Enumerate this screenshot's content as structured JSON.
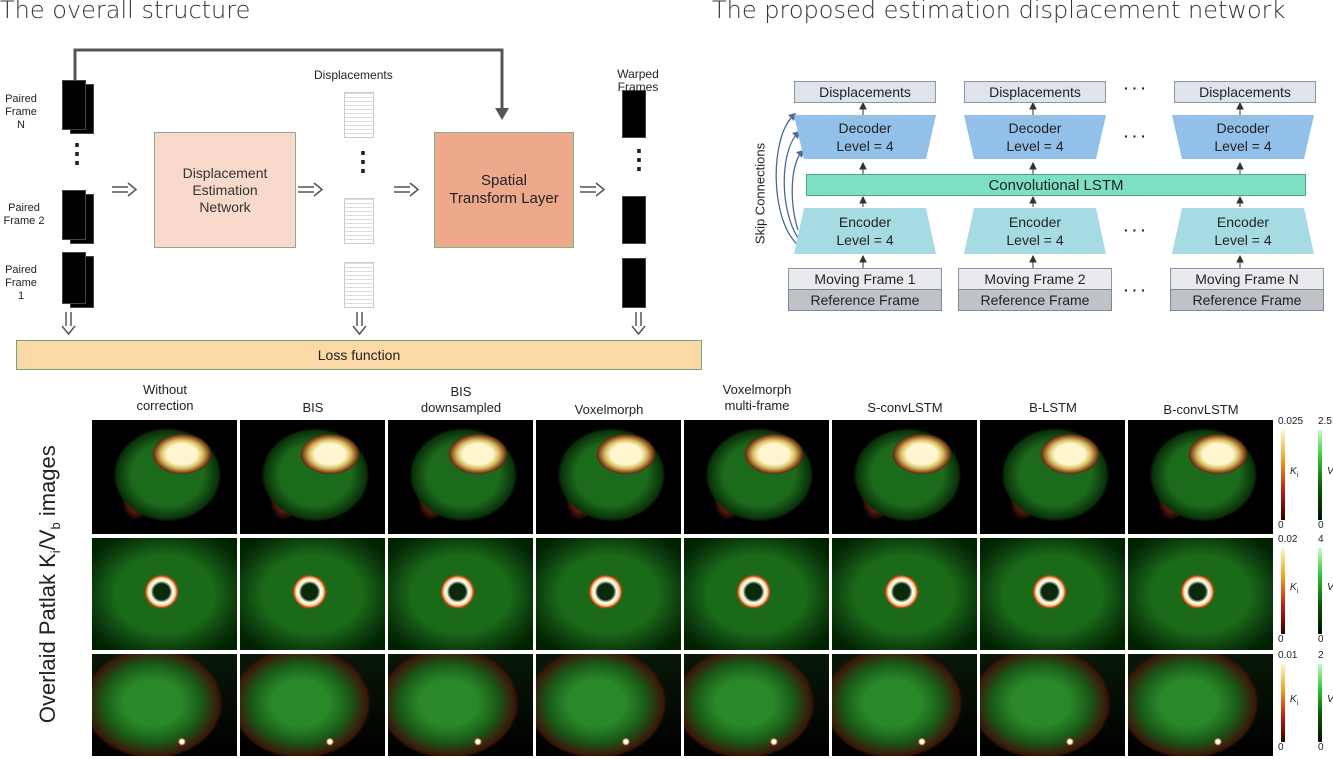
{
  "overall": {
    "title": "The overall structure",
    "paired_frames": [
      "Paired\nFrame N",
      "Paired\nFrame 2",
      "Paired\nFrame 1"
    ],
    "displacements_label": "Displacements",
    "warped_label": "Warped\nFrames",
    "dn_box": "Displacement\nEstimation\nNetwork",
    "stl_box": "Spatial\nTransform Layer",
    "loss": "Loss function",
    "ellipsis": "⋮"
  },
  "network": {
    "title": "The proposed estimation displacement network",
    "skip": "Skip Connections",
    "lstm": "Convolutional LSTM",
    "columns": [
      {
        "displacement": "Displacements",
        "decoder": "Decoder\nLevel = 4",
        "encoder": "Encoder\nLevel = 4",
        "moving": "Moving Frame 1",
        "reference": "Reference Frame"
      },
      {
        "displacement": "Displacements",
        "decoder": "Decoder\nLevel = 4",
        "encoder": "Encoder\nLevel = 4",
        "moving": "Moving Frame 2",
        "reference": "Reference Frame"
      },
      {
        "displacement": "Displacements",
        "decoder": "Decoder\nLevel = 4",
        "encoder": "Encoder\nLevel = 4",
        "moving": "Moving Frame N",
        "reference": "Reference Frame"
      }
    ],
    "dots": "· · ·"
  },
  "results": {
    "ylabel": "Overlaid Patlak K",
    "ylabel_sub1": "i",
    "ylabel_mid": "/V",
    "ylabel_sub2": "b",
    "ylabel_end": " images",
    "columns": [
      "Without\ncorrection",
      "BIS",
      "BIS\ndownsampled",
      "Voxelmorph",
      "Voxelmorph\nmulti-frame",
      "S-convLSTM",
      "B-LSTM",
      "B-convLSTM"
    ],
    "colorbars": [
      {
        "ki_max": "0.025",
        "vb_max": "2.5",
        "min": "0"
      },
      {
        "ki_max": "0.02",
        "vb_max": "4",
        "min": "0"
      },
      {
        "ki_max": "0.01",
        "vb_max": "2",
        "min": "0"
      }
    ],
    "ki": "K",
    "ki_sub": "i",
    "vb": "V",
    "vb_sub": "b"
  }
}
